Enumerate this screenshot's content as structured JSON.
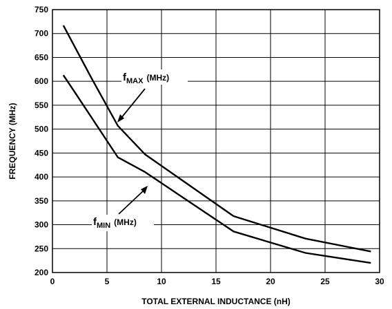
{
  "chart_data": {
    "type": "line",
    "xlabel": "TOTAL EXTERNAL INDUCTANCE (nH)",
    "ylabel": "FREQUENCY (MHz)",
    "xlim": [
      0,
      30
    ],
    "ylim": [
      200,
      750
    ],
    "x_ticks": [
      0,
      5,
      10,
      15,
      20,
      25,
      30
    ],
    "y_ticks": [
      200,
      250,
      300,
      350,
      400,
      450,
      500,
      550,
      600,
      650,
      700,
      750
    ],
    "grid": true,
    "series": [
      {
        "name": "fMAX (MHz)",
        "x": [
          1,
          3.5,
          6,
          8.5,
          16.6,
          23.2,
          29.2
        ],
        "y": [
          717,
          610,
          507,
          447,
          318,
          271,
          244
        ]
      },
      {
        "name": "fMIN (MHz)",
        "x": [
          1,
          2,
          6,
          8.5,
          16.6,
          23.2,
          29.2
        ],
        "y": [
          613,
          579,
          441,
          410,
          286,
          241,
          220
        ]
      }
    ],
    "annotations": [
      {
        "series": "fMAX (MHz)",
        "main": "f",
        "sub": "MAX",
        "units": "(MHz)"
      },
      {
        "series": "fMIN (MHz)",
        "main": "f",
        "sub": "MIN",
        "units": "(MHz)"
      }
    ]
  }
}
